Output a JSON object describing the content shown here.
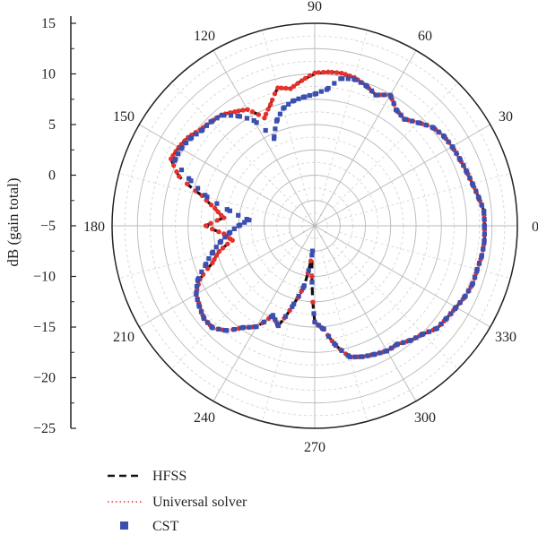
{
  "chart_data": {
    "type": "polar-line",
    "ylabel": "dB (gain total)",
    "r_axis": {
      "min": -25,
      "max": 15,
      "major_ticks": [
        15,
        10,
        5,
        0,
        -5,
        -10,
        -15,
        -20,
        -25
      ],
      "tick_labels": [
        "15",
        "10",
        "5",
        "0",
        "−5",
        "−10",
        "−15",
        "−20",
        "−25"
      ]
    },
    "angle_axis": {
      "unit": "degrees",
      "direction": "counterclockwise",
      "zero_at": "right",
      "ticks": [
        0,
        30,
        60,
        90,
        120,
        150,
        180,
        210,
        240,
        270,
        300,
        330
      ],
      "tick_labels": [
        "0",
        "30",
        "60",
        "90",
        "120",
        "150",
        "180",
        "210",
        "240",
        "270",
        "300",
        "330"
      ]
    },
    "grid": true,
    "legend_position": "bottom-left",
    "colors": {
      "HFSS": "#111111",
      "Universal solver": "#e8302a",
      "CST": "#3b4fb0"
    },
    "series": [
      {
        "name": "HFSS",
        "style": "dashed",
        "angles": [
          0,
          5,
          10,
          15,
          20,
          25,
          30,
          35,
          40,
          45,
          50,
          55,
          60,
          65,
          70,
          75,
          80,
          85,
          90,
          95,
          100,
          105,
          110,
          115,
          120,
          125,
          130,
          135,
          140,
          145,
          150,
          155,
          160,
          165,
          170,
          175,
          180,
          185,
          190,
          195,
          200,
          205,
          210,
          215,
          220,
          225,
          230,
          235,
          240,
          245,
          250,
          255,
          260,
          265,
          270,
          275,
          280,
          285,
          290,
          295,
          300,
          305,
          310,
          315,
          320,
          325,
          330,
          335,
          340,
          345,
          350,
          355,
          360
        ],
        "values": [
          8.5,
          8.5,
          7.8,
          7.2,
          6.8,
          6.5,
          6.3,
          6.0,
          5.3,
          3.8,
          2.5,
          3.0,
          4.8,
          3.5,
          4.5,
          5.3,
          5.6,
          5.5,
          5.0,
          3.8,
          2.5,
          3.2,
          0.5,
          -1.5,
          1.5,
          2.5,
          3.6,
          4.0,
          4.5,
          5.5,
          6.0,
          6.3,
          3.5,
          -2.0,
          -5.0,
          -7.0,
          -3.5,
          -7.0,
          -8.5,
          -5.5,
          -3.5,
          0.0,
          2.0,
          2.7,
          3.5,
          3.5,
          2.0,
          -0.5,
          -2.0,
          -5.5,
          -4.0,
          -9.0,
          -13.0,
          -20.0,
          -6.0,
          -4.5,
          -1.0,
          1.8,
          2.5,
          3.0,
          3.5,
          3.5,
          4.5,
          5.2,
          6.5,
          6.8,
          7.2,
          7.8,
          8.2,
          8.2,
          8.5,
          8.6,
          8.5
        ]
      },
      {
        "name": "Universal solver",
        "style": "dotted",
        "angles": [
          0,
          5,
          10,
          15,
          20,
          25,
          30,
          35,
          40,
          45,
          50,
          55,
          60,
          65,
          70,
          75,
          80,
          85,
          90,
          95,
          100,
          105,
          110,
          115,
          120,
          125,
          130,
          135,
          140,
          145,
          150,
          155,
          160,
          165,
          170,
          175,
          180,
          185,
          190,
          195,
          200,
          205,
          210,
          215,
          220,
          225,
          230,
          235,
          240,
          245,
          250,
          255,
          260,
          265,
          270,
          275,
          280,
          285,
          290,
          295,
          300,
          305,
          310,
          315,
          320,
          325,
          330,
          335,
          340,
          345,
          350,
          355,
          360
        ],
        "values": [
          8.5,
          8.5,
          7.8,
          7.2,
          6.8,
          6.5,
          6.3,
          6.0,
          5.3,
          3.8,
          2.5,
          3.0,
          4.8,
          3.5,
          4.5,
          5.3,
          5.6,
          5.5,
          5.2,
          3.8,
          2.5,
          3.2,
          0.5,
          -1.5,
          1.5,
          2.5,
          3.6,
          4.0,
          4.5,
          5.5,
          6.0,
          6.3,
          3.5,
          -2.0,
          -5.0,
          -7.0,
          -3.5,
          -7.0,
          -8.5,
          -5.5,
          -3.5,
          0.0,
          2.0,
          2.7,
          3.5,
          3.5,
          2.0,
          -0.5,
          -2.0,
          -5.5,
          -4.0,
          -9.0,
          -13.0,
          -20.0,
          -6.0,
          -4.5,
          -1.0,
          1.8,
          2.5,
          3.0,
          3.5,
          3.5,
          4.5,
          5.2,
          6.5,
          6.8,
          7.2,
          7.8,
          8.2,
          8.2,
          8.5,
          8.6,
          8.5
        ]
      },
      {
        "name": "CST",
        "style": "square-markers",
        "angles": [
          0,
          5,
          10,
          15,
          20,
          25,
          30,
          35,
          40,
          45,
          50,
          55,
          60,
          65,
          70,
          75,
          80,
          85,
          90,
          95,
          100,
          105,
          110,
          115,
          120,
          125,
          130,
          135,
          140,
          145,
          150,
          155,
          160,
          165,
          170,
          175,
          180,
          185,
          190,
          195,
          200,
          205,
          210,
          215,
          220,
          225,
          230,
          235,
          240,
          245,
          250,
          255,
          260,
          265,
          270,
          275,
          280,
          285,
          290,
          295,
          300,
          305,
          310,
          315,
          320,
          325,
          330,
          335,
          340,
          345,
          350,
          355,
          360
        ],
        "values": [
          8.5,
          8.5,
          7.8,
          7.2,
          6.8,
          6.5,
          6.3,
          6.0,
          5.3,
          3.8,
          2.5,
          3.0,
          4.8,
          3.5,
          4.5,
          5.0,
          4.5,
          2.0,
          1.0,
          0.5,
          0.0,
          -1.0,
          -3.0,
          -6.0,
          -1.0,
          1.5,
          3.5,
          4.0,
          4.2,
          5.0,
          5.5,
          5.5,
          1.0,
          -3.0,
          -8.0,
          -12.0,
          -10.0,
          -8.0,
          -6.0,
          -4.0,
          -2.0,
          0.5,
          2.0,
          2.8,
          3.5,
          3.5,
          2.0,
          -0.5,
          -2.0,
          -5.5,
          -4.0,
          -9.0,
          -13.0,
          -20.0,
          -6.0,
          -4.5,
          -1.0,
          1.8,
          2.5,
          3.0,
          3.5,
          3.5,
          4.5,
          5.2,
          6.5,
          6.8,
          7.2,
          7.8,
          8.2,
          8.2,
          8.5,
          8.6,
          8.5
        ]
      }
    ]
  }
}
